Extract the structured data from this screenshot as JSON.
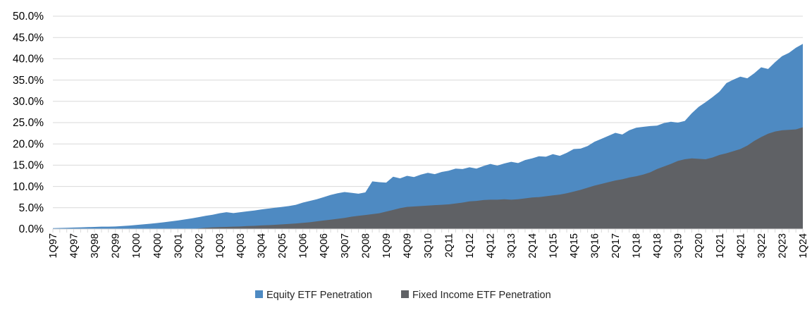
{
  "chart_data": {
    "type": "area",
    "overlap": true,
    "grid": true,
    "gridline_color": "#d9d9d9",
    "axis_color": "#d9d9d9",
    "ylim": [
      0,
      50
    ],
    "y_tick_labels": [
      "0.0%",
      "5.0%",
      "10.0%",
      "15.0%",
      "20.0%",
      "25.0%",
      "30.0%",
      "35.0%",
      "40.0%",
      "45.0%",
      "50.0%"
    ],
    "x_tick_label_interval": 3,
    "legend_position": "bottom",
    "categories": [
      "1Q97",
      "2Q97",
      "3Q97",
      "4Q97",
      "1Q98",
      "2Q98",
      "3Q98",
      "4Q98",
      "1Q99",
      "2Q99",
      "3Q99",
      "4Q99",
      "1Q00",
      "2Q00",
      "3Q00",
      "4Q00",
      "1Q01",
      "2Q01",
      "3Q01",
      "4Q01",
      "1Q02",
      "2Q02",
      "3Q02",
      "4Q02",
      "1Q03",
      "2Q03",
      "3Q03",
      "4Q03",
      "1Q04",
      "2Q04",
      "3Q04",
      "4Q04",
      "1Q05",
      "2Q05",
      "3Q05",
      "4Q05",
      "1Q06",
      "2Q06",
      "3Q06",
      "4Q06",
      "1Q07",
      "2Q07",
      "3Q07",
      "4Q07",
      "1Q08",
      "2Q08",
      "3Q08",
      "4Q08",
      "1Q09",
      "2Q09",
      "3Q09",
      "4Q09",
      "1Q10",
      "2Q10",
      "3Q10",
      "4Q10",
      "1Q11",
      "2Q11",
      "3Q11",
      "4Q11",
      "1Q12",
      "2Q12",
      "3Q12",
      "4Q12",
      "1Q13",
      "2Q13",
      "3Q13",
      "4Q13",
      "1Q14",
      "2Q14",
      "3Q14",
      "4Q14",
      "1Q15",
      "2Q15",
      "3Q15",
      "4Q15",
      "1Q16",
      "2Q16",
      "3Q16",
      "4Q16",
      "1Q17",
      "2Q17",
      "3Q17",
      "4Q17",
      "1Q18",
      "2Q18",
      "3Q18",
      "4Q18",
      "1Q19",
      "2Q19",
      "3Q19",
      "4Q19",
      "1Q20",
      "2Q20",
      "3Q20",
      "4Q20",
      "1Q21",
      "2Q21",
      "3Q21",
      "4Q21",
      "1Q22",
      "2Q22",
      "3Q22",
      "4Q22",
      "1Q23",
      "2Q23",
      "3Q23",
      "4Q23",
      "1Q24"
    ],
    "series": [
      {
        "name": "Equity ETF Penetration",
        "color": "#4e8ac2",
        "values": [
          0.2,
          0.25,
          0.3,
          0.35,
          0.4,
          0.45,
          0.5,
          0.55,
          0.55,
          0.6,
          0.7,
          0.8,
          0.95,
          1.1,
          1.25,
          1.4,
          1.6,
          1.8,
          2.0,
          2.25,
          2.5,
          2.8,
          3.1,
          3.35,
          3.7,
          3.95,
          3.75,
          3.95,
          4.15,
          4.35,
          4.6,
          4.8,
          5.0,
          5.2,
          5.4,
          5.7,
          6.2,
          6.6,
          7.0,
          7.5,
          8.0,
          8.4,
          8.7,
          8.5,
          8.3,
          8.6,
          11.2,
          11.0,
          10.9,
          12.3,
          11.9,
          12.5,
          12.2,
          12.8,
          13.2,
          12.9,
          13.4,
          13.7,
          14.2,
          14.1,
          14.5,
          14.2,
          14.8,
          15.3,
          14.9,
          15.4,
          15.8,
          15.5,
          16.2,
          16.6,
          17.1,
          17.0,
          17.6,
          17.2,
          17.9,
          18.8,
          18.9,
          19.5,
          20.5,
          21.2,
          21.9,
          22.6,
          22.2,
          23.2,
          23.8,
          24.0,
          24.2,
          24.3,
          24.9,
          25.2,
          25.0,
          25.4,
          27.2,
          28.7,
          29.8,
          31.0,
          32.3,
          34.3,
          35.1,
          35.8,
          35.4,
          36.6,
          38.0,
          37.6,
          39.2,
          40.6,
          41.4,
          42.6,
          43.5
        ]
      },
      {
        "name": "Fixed Income ETF Penetration",
        "color": "#5f6165",
        "values": [
          0,
          0,
          0,
          0,
          0,
          0,
          0,
          0,
          0,
          0,
          0,
          0,
          0,
          0,
          0,
          0,
          0,
          0,
          0,
          0,
          0,
          0.15,
          0.3,
          0.4,
          0.45,
          0.5,
          0.55,
          0.6,
          0.7,
          0.75,
          0.85,
          0.9,
          1.0,
          1.1,
          1.2,
          1.3,
          1.45,
          1.6,
          1.8,
          2.0,
          2.2,
          2.4,
          2.6,
          2.9,
          3.1,
          3.3,
          3.5,
          3.7,
          4.1,
          4.5,
          4.9,
          5.2,
          5.3,
          5.4,
          5.5,
          5.6,
          5.7,
          5.8,
          6.0,
          6.2,
          6.5,
          6.6,
          6.8,
          6.9,
          6.9,
          7.0,
          6.9,
          7.0,
          7.2,
          7.4,
          7.5,
          7.7,
          7.9,
          8.1,
          8.4,
          8.8,
          9.2,
          9.7,
          10.2,
          10.6,
          11.0,
          11.4,
          11.7,
          12.1,
          12.4,
          12.8,
          13.3,
          14.1,
          14.7,
          15.3,
          16.0,
          16.4,
          16.6,
          16.5,
          16.4,
          16.8,
          17.4,
          17.8,
          18.3,
          18.8,
          19.6,
          20.7,
          21.6,
          22.4,
          22.9,
          23.2,
          23.3,
          23.4,
          23.9
        ]
      }
    ]
  }
}
